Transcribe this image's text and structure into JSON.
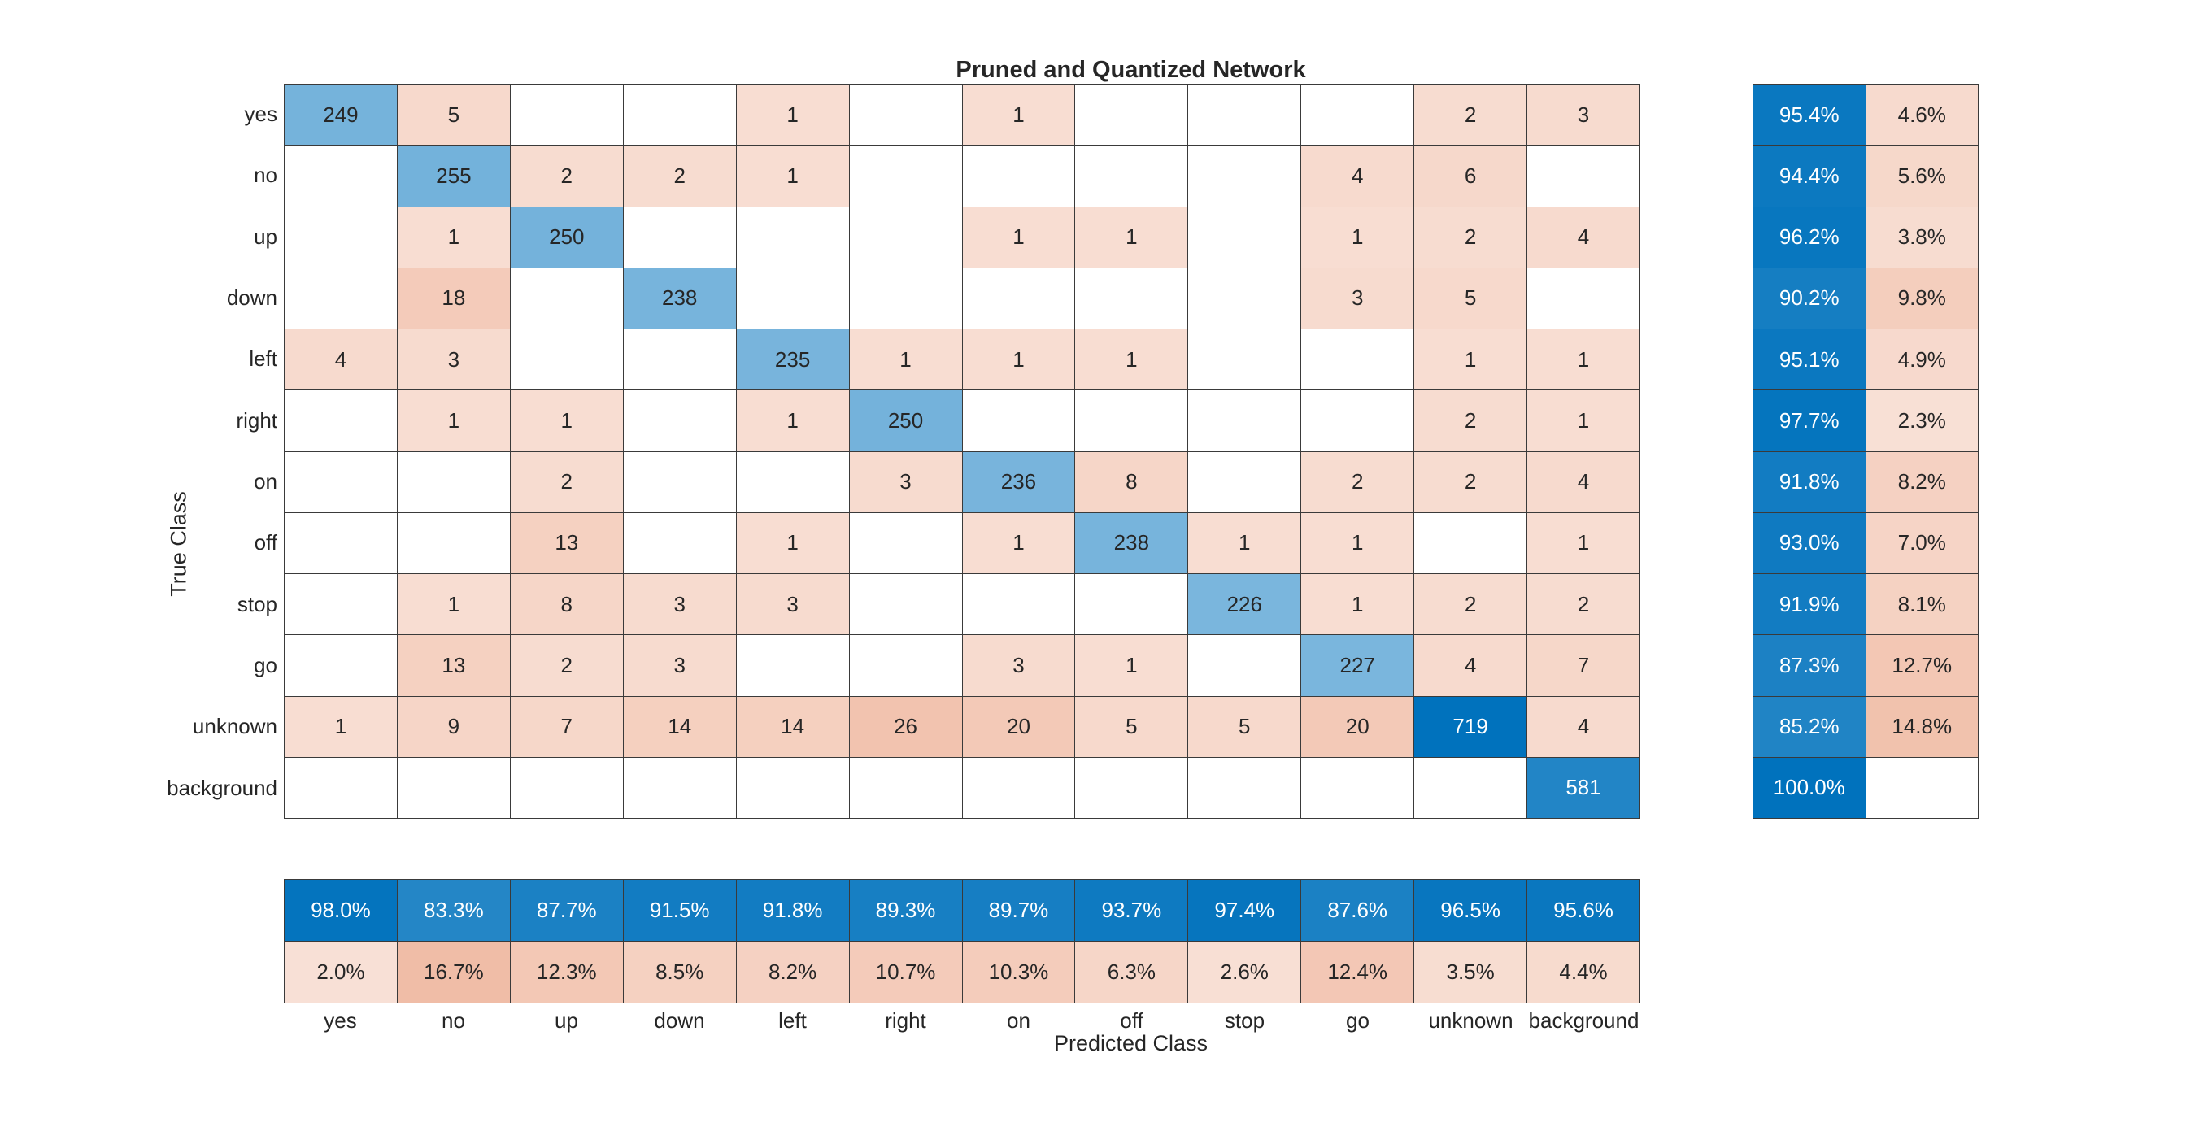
{
  "chart_data": {
    "type": "heatmap",
    "subtype": "confusion-matrix",
    "title": "Pruned and Quantized Network",
    "xlabel": "Predicted Class",
    "ylabel": "True Class",
    "classes": [
      "yes",
      "no",
      "up",
      "down",
      "left",
      "right",
      "on",
      "off",
      "stop",
      "go",
      "unknown",
      "background"
    ],
    "matrix": [
      [
        249,
        5,
        null,
        null,
        1,
        null,
        1,
        null,
        null,
        null,
        2,
        3
      ],
      [
        null,
        255,
        2,
        2,
        1,
        null,
        null,
        null,
        null,
        4,
        6,
        null
      ],
      [
        null,
        1,
        250,
        null,
        null,
        null,
        1,
        1,
        null,
        1,
        2,
        4
      ],
      [
        null,
        18,
        null,
        238,
        null,
        null,
        null,
        null,
        null,
        3,
        5,
        null
      ],
      [
        4,
        3,
        null,
        null,
        235,
        1,
        1,
        1,
        null,
        null,
        1,
        1
      ],
      [
        null,
        1,
        1,
        null,
        1,
        250,
        null,
        null,
        null,
        null,
        2,
        1
      ],
      [
        null,
        null,
        2,
        null,
        null,
        3,
        236,
        8,
        null,
        2,
        2,
        4
      ],
      [
        null,
        null,
        13,
        null,
        1,
        null,
        1,
        238,
        1,
        1,
        null,
        1
      ],
      [
        null,
        1,
        8,
        3,
        3,
        null,
        null,
        null,
        226,
        1,
        2,
        2
      ],
      [
        null,
        13,
        2,
        3,
        null,
        null,
        3,
        1,
        null,
        227,
        4,
        7
      ],
      [
        1,
        9,
        7,
        14,
        14,
        26,
        20,
        5,
        5,
        20,
        719,
        4
      ],
      [
        null,
        null,
        null,
        null,
        null,
        null,
        null,
        null,
        null,
        null,
        null,
        581
      ]
    ],
    "row_summary": {
      "correct_pct": [
        95.4,
        94.4,
        96.2,
        90.2,
        95.1,
        97.7,
        91.8,
        93.0,
        91.9,
        87.3,
        85.2,
        100.0
      ],
      "incorrect_pct": [
        4.6,
        5.6,
        3.8,
        9.8,
        4.9,
        2.3,
        8.2,
        7.0,
        8.1,
        12.7,
        14.8,
        null
      ]
    },
    "column_summary": {
      "correct_pct": [
        98.0,
        83.3,
        87.7,
        91.5,
        91.8,
        89.3,
        89.7,
        93.7,
        97.4,
        87.6,
        96.5,
        95.6
      ],
      "incorrect_pct": [
        2.0,
        16.7,
        12.3,
        8.5,
        8.2,
        10.7,
        10.3,
        6.3,
        2.6,
        12.4,
        3.5,
        4.4
      ]
    },
    "colors": {
      "diagonal_base": "#0072BD",
      "off_diagonal_base": "#D95319",
      "grid_line": "#3A3A3A",
      "text_dark": "#262626",
      "text_light": "#FFFFFF",
      "background": "#FFFFFF"
    },
    "layout": {
      "grid_on": true,
      "legend": "none"
    }
  }
}
